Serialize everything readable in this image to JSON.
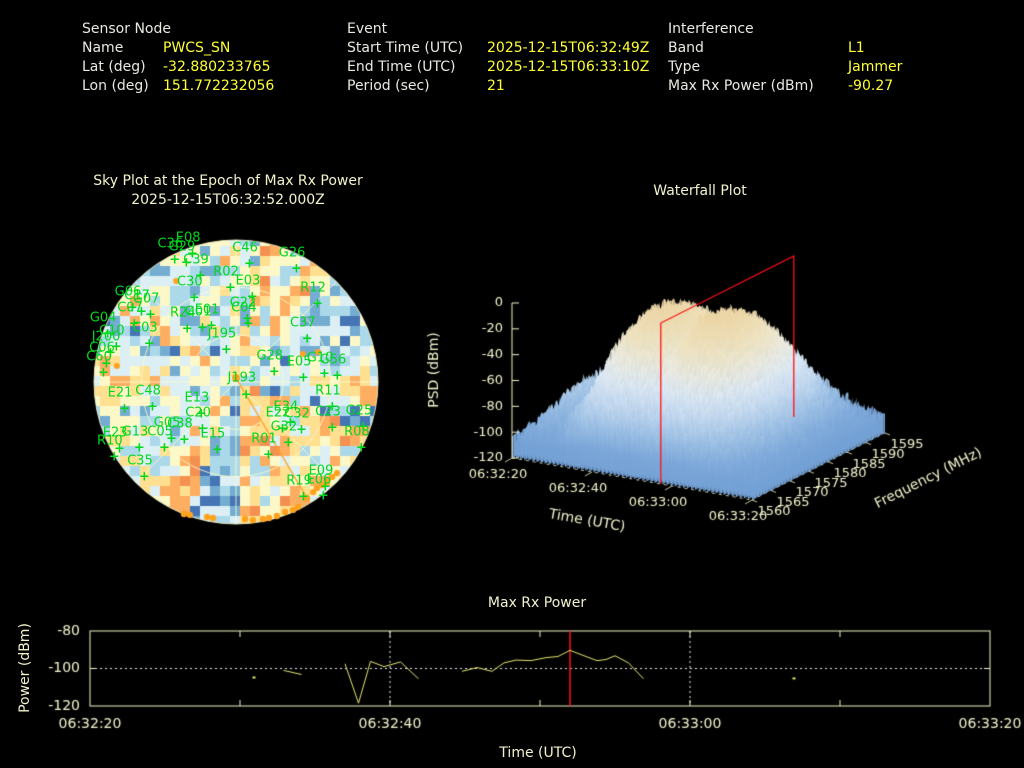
{
  "header": {
    "sensor": {
      "title": "Sensor Node",
      "rows": [
        {
          "label": "Name",
          "value": "PWCS_SN"
        },
        {
          "label": "Lat (deg)",
          "value": "-32.880233765"
        },
        {
          "label": "Lon (deg)",
          "value": "151.772232056"
        }
      ]
    },
    "event": {
      "title": "Event",
      "rows": [
        {
          "label": "Start Time (UTC)",
          "value": "2025-12-15T06:32:49Z"
        },
        {
          "label": "End Time (UTC)",
          "value": "2025-12-15T06:33:10Z"
        },
        {
          "label": "Period (sec)",
          "value": "21"
        }
      ]
    },
    "interference": {
      "title": "Interference",
      "rows": [
        {
          "label": "Band",
          "value": "L1"
        },
        {
          "label": "Type",
          "value": "Jammer"
        },
        {
          "label": "Max Rx Power (dBm)",
          "value": "-90.27"
        }
      ]
    }
  },
  "colors": {
    "background": "#000000",
    "label_text": "#e9e9e1",
    "value_text": "#ffff33",
    "plot_text": "#f2f2cc",
    "frame": "#f2f2cc",
    "satellite_green": "#00d81e",
    "orange": "#ffa21f",
    "red": "#ff1212",
    "series_yellow": "#e6e670",
    "dotted_white": "#e8e8e8"
  },
  "chart_data": [
    {
      "id": "sky_plot",
      "type": "heatmap",
      "subtype": "polar-sky-plot",
      "title": "Sky Plot at the Epoch of Max Rx Power",
      "subtitle": "2025-12-15T06:32:52.000Z",
      "rings": 9,
      "sectors": 36,
      "seed": 7,
      "palette": [
        "#4575b4",
        "#74add1",
        "#abd9e9",
        "#dbeff5",
        "#fdf8c8",
        "#fee090",
        "#fdae61",
        "#f59053"
      ],
      "grid": {
        "elevation_circles": [
          30,
          60
        ],
        "spokes": 8
      },
      "note": "cell values are noise-like interference power; rendered procedurally from seed",
      "satellites": [
        {
          "id": "E08",
          "x": 33.6,
          "y": 0.7
        },
        {
          "id": "C36",
          "x": 27.5,
          "y": 2.7
        },
        {
          "id": "G29",
          "x": 31.5,
          "y": 3.9
        },
        {
          "id": "C39",
          "x": 36.3,
          "y": 8.2
        },
        {
          "id": "C46",
          "x": 53.1,
          "y": 4.1
        },
        {
          "id": "G26",
          "x": 69.2,
          "y": 5.8
        },
        {
          "id": "R02",
          "x": 46.6,
          "y": 12.3
        },
        {
          "id": "C30",
          "x": 34.2,
          "y": 15.8
        },
        {
          "id": "E03",
          "x": 54.1,
          "y": 15.4
        },
        {
          "id": "R12",
          "x": 76.4,
          "y": 17.8
        },
        {
          "id": "G06",
          "x": 13.0,
          "y": 19.2
        },
        {
          "id": "C17",
          "x": 16.1,
          "y": 20.4
        },
        {
          "id": "G07",
          "x": 19.2,
          "y": 21.6
        },
        {
          "id": "C07",
          "x": 13.7,
          "y": 24.7
        },
        {
          "id": "G04",
          "x": 4.5,
          "y": 28.1
        },
        {
          "id": "C10",
          "x": 7.5,
          "y": 32.5
        },
        {
          "id": "J200",
          "x": 5.5,
          "y": 34.6
        },
        {
          "id": "C06",
          "x": 4.1,
          "y": 38.4
        },
        {
          "id": "C60",
          "x": 3.1,
          "y": 41.4
        },
        {
          "id": "C03",
          "x": 18.8,
          "y": 31.5
        },
        {
          "id": "R24",
          "x": 31.8,
          "y": 26.4
        },
        {
          "id": "G01",
          "x": 37.0,
          "y": 26.0
        },
        {
          "id": "E01",
          "x": 40.1,
          "y": 25.3
        },
        {
          "id": "G22",
          "x": 52.4,
          "y": 22.9
        },
        {
          "id": "C04",
          "x": 52.7,
          "y": 24.7
        },
        {
          "id": "J195",
          "x": 45.2,
          "y": 33.6
        },
        {
          "id": "C37",
          "x": 72.9,
          "y": 29.8
        },
        {
          "id": "G28",
          "x": 61.6,
          "y": 41.1
        },
        {
          "id": "E05",
          "x": 71.6,
          "y": 43.2
        },
        {
          "id": "G10",
          "x": 78.8,
          "y": 41.8
        },
        {
          "id": "G56",
          "x": 83.2,
          "y": 42.5
        },
        {
          "id": "R11",
          "x": 81.5,
          "y": 53.1
        },
        {
          "id": "J193",
          "x": 52.0,
          "y": 48.8
        },
        {
          "id": "E21",
          "x": 10.3,
          "y": 53.8
        },
        {
          "id": "C48",
          "x": 19.9,
          "y": 53.1
        },
        {
          "id": "E13",
          "x": 36.6,
          "y": 55.5
        },
        {
          "id": "C20",
          "x": 37.0,
          "y": 60.6
        },
        {
          "id": "G05",
          "x": 26.4,
          "y": 64.0
        },
        {
          "id": "C38",
          "x": 30.8,
          "y": 64.4
        },
        {
          "id": "G13",
          "x": 15.4,
          "y": 67.1
        },
        {
          "id": "C05",
          "x": 24.0,
          "y": 67.1
        },
        {
          "id": "E23",
          "x": 8.6,
          "y": 67.5
        },
        {
          "id": "R10",
          "x": 6.8,
          "y": 70.2
        },
        {
          "id": "E15",
          "x": 42.1,
          "y": 67.8
        },
        {
          "id": "C35",
          "x": 17.1,
          "y": 77.1
        },
        {
          "id": "E34",
          "x": 67.1,
          "y": 58.6
        },
        {
          "id": "E22",
          "x": 64.4,
          "y": 60.6
        },
        {
          "id": "C32",
          "x": 70.9,
          "y": 61.0
        },
        {
          "id": "G32",
          "x": 66.4,
          "y": 65.4
        },
        {
          "id": "C23",
          "x": 81.5,
          "y": 60.3
        },
        {
          "id": "G25",
          "x": 92.1,
          "y": 59.9
        },
        {
          "id": "R08",
          "x": 91.4,
          "y": 67.1
        },
        {
          "id": "R01",
          "x": 59.6,
          "y": 69.5
        },
        {
          "id": "E09",
          "x": 79.1,
          "y": 80.5
        },
        {
          "id": "E06",
          "x": 78.4,
          "y": 83.6
        },
        {
          "id": "R19",
          "x": 71.6,
          "y": 83.9
        }
      ],
      "track_color": "#ffa21f",
      "track_line": [
        [
          50.0,
          48.6
        ],
        [
          74.3,
          89.7
        ]
      ],
      "track_dots": [
        [
          32.2,
          95.2
        ],
        [
          34.2,
          95.5
        ],
        [
          40.1,
          96.2
        ],
        [
          42.1,
          96.6
        ],
        [
          53.1,
          96.9
        ],
        [
          55.8,
          97.3
        ],
        [
          59.2,
          96.9
        ],
        [
          61.3,
          96.6
        ],
        [
          64.0,
          95.9
        ],
        [
          66.8,
          94.5
        ],
        [
          69.5,
          93.8
        ],
        [
          71.2,
          92.8
        ],
        [
          74.3,
          89.7
        ],
        [
          76.4,
          87.7
        ],
        [
          77.7,
          86.3
        ],
        [
          79.5,
          85.3
        ],
        [
          81.2,
          84.2
        ],
        [
          82.9,
          82.5
        ],
        [
          84.6,
          81.2
        ]
      ],
      "isolated_dots": [
        [
          29.5,
          15.4
        ],
        [
          72.9,
          40.4
        ],
        [
          78.1,
          39.7
        ],
        [
          9.2,
          44.5
        ]
      ],
      "center_dot": [
        50.0,
        48.6
      ]
    },
    {
      "id": "waterfall",
      "type": "heatmap",
      "subtype": "3d-surface-waterfall",
      "title": "Waterfall Plot",
      "xlabel": "Time (UTC)",
      "ylabel": "PSD (dBm)",
      "zlabel": "Frequency (MHz)",
      "time_ticks": [
        "06:32:20",
        "06:32:40",
        "06:33:00",
        "06:33:20"
      ],
      "freq_ticks": [
        "1560",
        "1565",
        "1570",
        "1575",
        "1580",
        "1585",
        "1590",
        "1595"
      ],
      "psd_ticks": [
        0,
        -20,
        -40,
        -60,
        -80,
        -100,
        -120
      ],
      "psd_range_dbm": [
        -120,
        0
      ],
      "freq_range_mhz": [
        1560,
        1595
      ],
      "time_range_sec": 60,
      "epoch_time_utc": "06:32:52",
      "epoch_plane_color": "#ff1212",
      "noise_floor_dbm": -104,
      "ridge_envelope": {
        "t_sec": [
          0,
          4,
          8,
          12,
          16,
          20,
          24,
          28,
          30,
          32,
          36,
          40,
          44,
          48,
          52,
          56,
          60
        ],
        "peak_dbm": [
          -100,
          -78,
          -88,
          -62,
          -30,
          -16,
          -13,
          -22,
          -30,
          -18,
          -12,
          -16,
          -30,
          -55,
          -80,
          -96,
          -104
        ]
      },
      "freq_shape": [
        0.12,
        0.5,
        0.85,
        1.0,
        0.97,
        0.85,
        0.55,
        0.2
      ],
      "colormap": [
        [
          -120,
          "#6b9bd2"
        ],
        [
          -100,
          "#7fa9da"
        ],
        [
          -85,
          "#a6c8e8"
        ],
        [
          -70,
          "#cfe0f2"
        ],
        [
          -55,
          "#e7eef5"
        ],
        [
          -42,
          "#f2eddc"
        ],
        [
          -28,
          "#f2e3ba"
        ],
        [
          -10,
          "#edd29b"
        ]
      ],
      "seed": 11,
      "note": "surface heights estimated from pixels; procedural jitter from seed"
    },
    {
      "id": "max_rx_power",
      "type": "line",
      "title": "Max Rx Power",
      "xlabel": "Time (UTC)",
      "ylabel": "Power (dBm)",
      "x_ticks": [
        {
          "sec": 0,
          "label": "06:32:20"
        },
        {
          "sec": 20,
          "label": "06:32:40"
        },
        {
          "sec": 40,
          "label": "06:33:00"
        },
        {
          "sec": 60,
          "label": "06:33:20"
        }
      ],
      "minor_tick_sec": 10,
      "x_range_sec": 60,
      "ylim": [
        -120,
        -80
      ],
      "y_ticks": [
        -80,
        -100,
        -120
      ],
      "dotted_y": -100,
      "dotted_x_sec": [
        20,
        40
      ],
      "epoch_sec": 32,
      "epoch_color": "#ff1212",
      "series": [
        {
          "name": "Max Rx Power",
          "color": "#e6e670",
          "segments": [
            [
              [
                10.9,
                -104.8
              ]
            ],
            [
              [
                12.9,
                -101.0
              ],
              [
                14.1,
                -103.2
              ]
            ],
            [
              [
                17.0,
                -97.5
              ],
              [
                17.9,
                -118.5
              ],
              [
                18.7,
                -96.2
              ],
              [
                19.6,
                -99.0
              ],
              [
                20.7,
                -96.5
              ],
              [
                21.9,
                -105.5
              ]
            ],
            [
              [
                24.8,
                -101.5
              ],
              [
                25.8,
                -99.5
              ],
              [
                26.8,
                -101.5
              ],
              [
                27.6,
                -97.0
              ],
              [
                28.4,
                -95.5
              ],
              [
                29.4,
                -95.8
              ],
              [
                30.4,
                -94.2
              ],
              [
                31.2,
                -93.6
              ],
              [
                32.0,
                -90.3
              ],
              [
                33.0,
                -93.4
              ],
              [
                33.8,
                -95.8
              ],
              [
                34.4,
                -95.2
              ],
              [
                35.0,
                -93.2
              ],
              [
                35.9,
                -97.0
              ],
              [
                36.9,
                -105.5
              ]
            ],
            [
              [
                46.9,
                -105.3
              ]
            ]
          ]
        }
      ]
    }
  ]
}
